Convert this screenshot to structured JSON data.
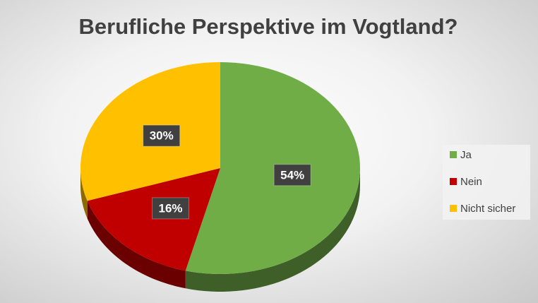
{
  "chart_data": {
    "type": "pie",
    "title": "Berufliche Perspektive im Vogtland?",
    "categories": [
      "Ja",
      "Nein",
      "Nicht sicher"
    ],
    "values": [
      54,
      16,
      30
    ],
    "value_labels": [
      "54%",
      "16%",
      "30%"
    ],
    "colors": [
      "#70ad47",
      "#c00000",
      "#ffc000"
    ],
    "legend": "right"
  }
}
